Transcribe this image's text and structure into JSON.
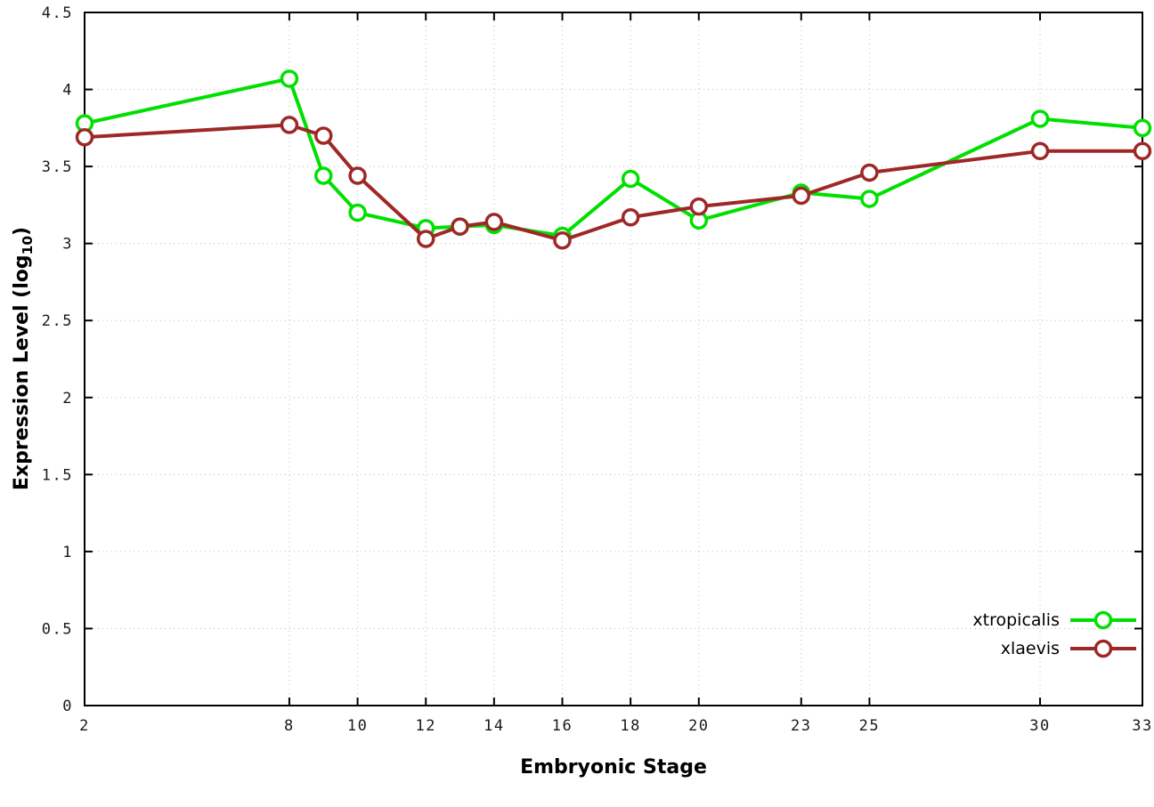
{
  "chart_data": {
    "type": "line",
    "title": "",
    "xlabel": "Embryonic Stage",
    "ylabel": "Expression Level (log10)",
    "xlim": [
      2,
      33
    ],
    "ylim": [
      0,
      4.5
    ],
    "xticks": [
      2,
      8,
      10,
      12,
      14,
      16,
      18,
      20,
      23,
      25,
      30,
      33
    ],
    "yticks": [
      0,
      0.5,
      1,
      1.5,
      2,
      2.5,
      3,
      3.5,
      4,
      4.5
    ],
    "grid": true,
    "legend_position": "bottom-right",
    "x": [
      2,
      8,
      9,
      10,
      12,
      13,
      14,
      16,
      18,
      20,
      23,
      25,
      30,
      33
    ],
    "series": [
      {
        "name": "xtropicalis",
        "color": "#00e000",
        "values": [
          3.78,
          4.07,
          3.44,
          3.2,
          3.1,
          3.11,
          3.12,
          3.05,
          3.42,
          3.15,
          3.33,
          3.29,
          3.81,
          3.75
        ]
      },
      {
        "name": "xlaevis",
        "color": "#9e2828",
        "values": [
          3.69,
          3.77,
          3.7,
          3.44,
          3.03,
          3.11,
          3.14,
          3.02,
          3.17,
          3.24,
          3.31,
          3.46,
          3.6,
          3.6
        ]
      }
    ]
  },
  "labels": {
    "ylabel_prefix": "Expression Level (log",
    "ylabel_sub": "10",
    "ylabel_suffix": ")"
  },
  "style": {
    "grid_color": "#bdbdbd",
    "frame_color": "#000000",
    "tick_label_color": "#1a1a1a"
  }
}
